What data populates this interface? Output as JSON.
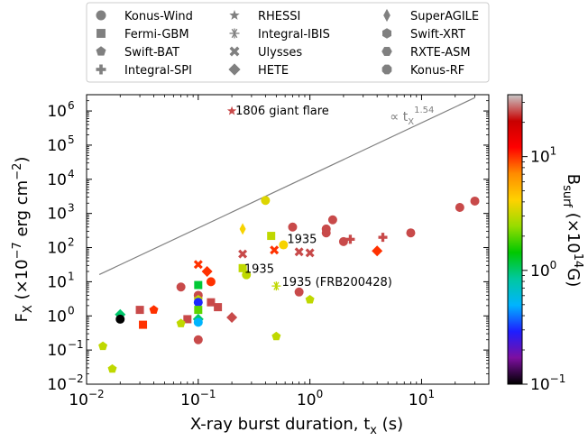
{
  "chart_data": {
    "type": "scatter",
    "title": "",
    "xlabel": "X-ray burst duration, t",
    "xlabel_sub": "x",
    "xlabel_unit": "(s)",
    "ylabel": "F",
    "ylabel_sub": "X",
    "ylabel_unit": "(×10",
    "ylabel_unit_exp": "−7",
    "ylabel_unit_tail": " erg cm",
    "ylabel_unit_tail_exp": "−2",
    "ylabel_close": ")",
    "x_scale": "log",
    "y_scale": "log",
    "xlim": [
      0.01,
      40
    ],
    "ylim": [
      0.01,
      3000000
    ],
    "x_ticks": [
      {
        "value": 0.01,
        "base": "10",
        "exp": "−2"
      },
      {
        "value": 0.1,
        "base": "10",
        "exp": "−1"
      },
      {
        "value": 1,
        "base": "10",
        "exp": "0"
      },
      {
        "value": 10,
        "base": "10",
        "exp": "1"
      }
    ],
    "y_ticks": [
      {
        "value": 0.01,
        "base": "10",
        "exp": "−2"
      },
      {
        "value": 0.1,
        "base": "10",
        "exp": "−1"
      },
      {
        "value": 1,
        "base": "10",
        "exp": "0"
      },
      {
        "value": 10,
        "base": "10",
        "exp": "1"
      },
      {
        "value": 100,
        "base": "10",
        "exp": "2"
      },
      {
        "value": 1000,
        "base": "10",
        "exp": "3"
      },
      {
        "value": 10000,
        "base": "10",
        "exp": "4"
      },
      {
        "value": 100000,
        "base": "10",
        "exp": "5"
      },
      {
        "value": 1000000,
        "base": "10",
        "exp": "6"
      }
    ],
    "legend_position": "top-center",
    "legend": [
      {
        "name": "Konus-Wind",
        "marker": "circle"
      },
      {
        "name": "Fermi-GBM",
        "marker": "square"
      },
      {
        "name": "Swift-BAT",
        "marker": "pentagon"
      },
      {
        "name": "Integral-SPI",
        "marker": "plus"
      },
      {
        "name": "RHESSI",
        "marker": "star"
      },
      {
        "name": "Integral-IBIS",
        "marker": "asterisk"
      },
      {
        "name": "Ulysses",
        "marker": "x"
      },
      {
        "name": "HETE",
        "marker": "diamond"
      },
      {
        "name": "SuperAGILE",
        "marker": "thin-diamond"
      },
      {
        "name": "Swift-XRT",
        "marker": "hexagon"
      },
      {
        "name": "RXTE-ASM",
        "marker": "hexagon2"
      },
      {
        "name": "Konus-RF",
        "marker": "octagon"
      }
    ],
    "legend_marker_color": "#808080",
    "fit_line": {
      "label": "∝ t",
      "label_sub": "X",
      "label_sup": "1.54",
      "slope": 1.54,
      "x_range": [
        0.013,
        30
      ],
      "y_at_x1": 13000,
      "color": "#808080"
    },
    "colorbar": {
      "label": "B",
      "label_sub": "surf",
      "label_unit": " (×10",
      "label_unit_exp": "14",
      "label_unit_tail": "G)",
      "scale": "log",
      "range": [
        0.1,
        35
      ],
      "ticks": [
        {
          "value": 0.1,
          "base": "10",
          "exp": "−1"
        },
        {
          "value": 1,
          "base": "10",
          "exp": "0"
        },
        {
          "value": 10,
          "base": "10",
          "exp": "1"
        }
      ],
      "colormap": [
        "#000000",
        "#7d0fa0",
        "#1e1eff",
        "#00b4ff",
        "#00c8a0",
        "#00c800",
        "#96dc00",
        "#ffd200",
        "#ff8c00",
        "#ff0000",
        "#c80000",
        "#c8c8c8"
      ]
    },
    "annotations": [
      {
        "text": "1806 giant flare",
        "x": 0.2,
        "y": 1000000
      },
      {
        "text": "1935",
        "x": 0.58,
        "y": 120
      },
      {
        "text": "1935",
        "x": 0.24,
        "y": 18
      },
      {
        "text": "1935 (FRB200428)",
        "x": 0.52,
        "y": 7.5
      }
    ],
    "points": [
      {
        "x": 0.2,
        "y": 1000000,
        "marker": "star",
        "b": 25
      },
      {
        "x": 30,
        "y": 2300,
        "marker": "circle",
        "b": 25
      },
      {
        "x": 22,
        "y": 1500,
        "marker": "circle",
        "b": 25
      },
      {
        "x": 8,
        "y": 270,
        "marker": "circle",
        "b": 25
      },
      {
        "x": 1.6,
        "y": 650,
        "marker": "circle",
        "b": 25
      },
      {
        "x": 1.4,
        "y": 350,
        "marker": "circle",
        "b": 25
      },
      {
        "x": 1.4,
        "y": 270,
        "marker": "circle",
        "b": 25
      },
      {
        "x": 2,
        "y": 150,
        "marker": "circle",
        "b": 25
      },
      {
        "x": 0.7,
        "y": 400,
        "marker": "circle",
        "b": 25
      },
      {
        "x": 0.4,
        "y": 2400,
        "marker": "circle",
        "b": 3.5
      },
      {
        "x": 0.58,
        "y": 120,
        "marker": "circle",
        "b": 4
      },
      {
        "x": 0.45,
        "y": 220,
        "marker": "square",
        "b": 3
      },
      {
        "x": 0.25,
        "y": 25,
        "marker": "square",
        "b": 3
      },
      {
        "x": 0.27,
        "y": 16,
        "marker": "circle",
        "b": 3
      },
      {
        "x": 0.25,
        "y": 350,
        "marker": "thin-diamond",
        "b": 4
      },
      {
        "x": 2.3,
        "y": 175,
        "marker": "plus",
        "b": 25
      },
      {
        "x": 4.5,
        "y": 200,
        "marker": "plus",
        "b": 25
      },
      {
        "x": 4,
        "y": 80,
        "marker": "diamond",
        "b": 10
      },
      {
        "x": 0.48,
        "y": 85,
        "marker": "x",
        "b": 10
      },
      {
        "x": 0.25,
        "y": 65,
        "marker": "x",
        "b": 25
      },
      {
        "x": 0.8,
        "y": 75,
        "marker": "x",
        "b": 25
      },
      {
        "x": 1,
        "y": 70,
        "marker": "x",
        "b": 25
      },
      {
        "x": 0.1,
        "y": 32,
        "marker": "x",
        "b": 10
      },
      {
        "x": 0.12,
        "y": 20,
        "marker": "diamond",
        "b": 10
      },
      {
        "x": 0.13,
        "y": 10,
        "marker": "circle",
        "b": 10
      },
      {
        "x": 0.07,
        "y": 7,
        "marker": "circle",
        "b": 25
      },
      {
        "x": 0.1,
        "y": 8,
        "marker": "square",
        "b": 1.2
      },
      {
        "x": 0.1,
        "y": 4,
        "marker": "circle",
        "b": 25
      },
      {
        "x": 0.1,
        "y": 3,
        "marker": "pentagon",
        "b": 3
      },
      {
        "x": 0.1,
        "y": 2.5,
        "marker": "circle",
        "b": 0.3
      },
      {
        "x": 0.1,
        "y": 1.5,
        "marker": "square",
        "b": 2
      },
      {
        "x": 0.13,
        "y": 2.5,
        "marker": "square",
        "b": 25
      },
      {
        "x": 0.15,
        "y": 1.8,
        "marker": "square",
        "b": 25
      },
      {
        "x": 0.1,
        "y": 0.8,
        "marker": "diamond",
        "b": 1
      },
      {
        "x": 0.1,
        "y": 0.65,
        "marker": "circle",
        "b": 0.5
      },
      {
        "x": 0.08,
        "y": 0.8,
        "marker": "square",
        "b": 25
      },
      {
        "x": 0.07,
        "y": 0.6,
        "marker": "pentagon",
        "b": 3
      },
      {
        "x": 0.2,
        "y": 0.9,
        "marker": "diamond",
        "b": 25
      },
      {
        "x": 0.1,
        "y": 0.2,
        "marker": "circle",
        "b": 25
      },
      {
        "x": 0.03,
        "y": 1.5,
        "marker": "square",
        "b": 25
      },
      {
        "x": 0.032,
        "y": 0.55,
        "marker": "square",
        "b": 10
      },
      {
        "x": 0.04,
        "y": 1.5,
        "marker": "pentagon",
        "b": 10
      },
      {
        "x": 0.02,
        "y": 1.1,
        "marker": "diamond",
        "b": 1
      },
      {
        "x": 0.02,
        "y": 0.8,
        "marker": "circle",
        "b": 0.1
      },
      {
        "x": 0.014,
        "y": 0.13,
        "marker": "pentagon",
        "b": 3
      },
      {
        "x": 0.017,
        "y": 0.028,
        "marker": "pentagon",
        "b": 3
      },
      {
        "x": 0.5,
        "y": 7.5,
        "marker": "asterisk",
        "b": 3
      },
      {
        "x": 0.8,
        "y": 5,
        "marker": "circle",
        "b": 25
      },
      {
        "x": 1,
        "y": 3,
        "marker": "pentagon",
        "b": 3
      },
      {
        "x": 0.5,
        "y": 0.25,
        "marker": "pentagon",
        "b": 3
      }
    ]
  }
}
